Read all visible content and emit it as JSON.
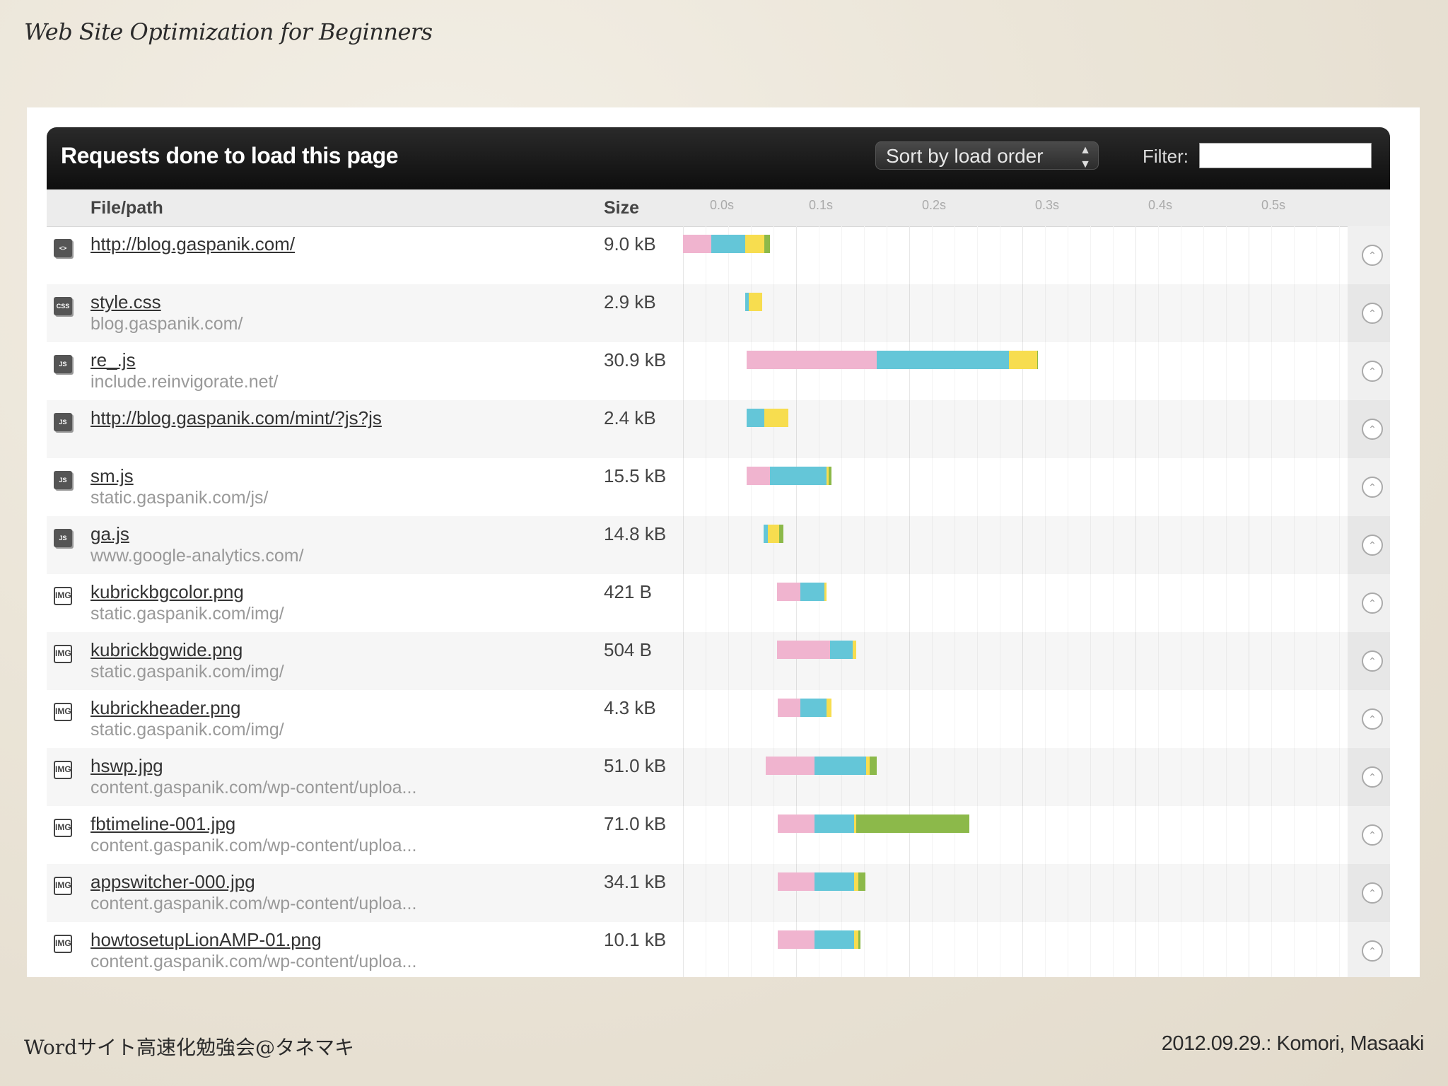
{
  "slide": {
    "title": "Web Site Optimization for Beginners",
    "footer_left": "Wordサイト高速化勉強会@タネマキ",
    "footer_right": "2012.09.29.: Komori, Masaaki"
  },
  "panel": {
    "title": "Requests done to load this page",
    "sort_label": "Sort by load order",
    "filter_label": "Filter:",
    "filter_value": ""
  },
  "columns": {
    "file": "File/path",
    "size": "Size",
    "ticks": [
      "0.0s",
      "0.1s",
      "0.2s",
      "0.3s",
      "0.4s",
      "0.5s"
    ]
  },
  "colors": {
    "dns": "#f0b4cf",
    "connect": "#64c6d8",
    "wait": "#f7dd4f",
    "receive": "#8cb94a"
  },
  "requests": [
    {
      "icon": "<>",
      "type": "html",
      "name": "http://blog.gaspanik.com/",
      "host": "",
      "size": "9.0 kB",
      "segments": [
        0.0,
        0.025,
        0.055,
        0.072,
        0.077
      ]
    },
    {
      "icon": "CSS",
      "type": "css",
      "name": "style.css",
      "host": "blog.gaspanik.com/",
      "size": "2.9 kB",
      "segments": [
        0.055,
        0.055,
        0.058,
        0.07,
        0.07
      ]
    },
    {
      "icon": "JS",
      "type": "js",
      "name": "re_.js",
      "host": "include.reinvigorate.net/",
      "size": "30.9 kB",
      "segments": [
        0.056,
        0.171,
        0.288,
        0.313,
        0.314
      ]
    },
    {
      "icon": "JS",
      "type": "js",
      "name": "http://blog.gaspanik.com/mint/?js?js",
      "host": "",
      "size": "2.4 kB",
      "segments": [
        0.056,
        0.056,
        0.072,
        0.093,
        0.093
      ]
    },
    {
      "icon": "JS",
      "type": "js",
      "name": "sm.js",
      "host": "static.gaspanik.com/js/",
      "size": "15.5 kB",
      "segments": [
        0.056,
        0.077,
        0.127,
        0.129,
        0.131
      ]
    },
    {
      "icon": "JS",
      "type": "js",
      "name": "ga.js",
      "host": "www.google-analytics.com/",
      "size": "14.8 kB",
      "segments": [
        0.071,
        0.071,
        0.075,
        0.085,
        0.089
      ]
    },
    {
      "icon": "IMG",
      "type": "img",
      "name": "kubrickbgcolor.png",
      "host": "static.gaspanik.com/img/",
      "size": "421 B",
      "segments": [
        0.083,
        0.104,
        0.125,
        0.127,
        0.127
      ]
    },
    {
      "icon": "IMG",
      "type": "img",
      "name": "kubrickbgwide.png",
      "host": "static.gaspanik.com/img/",
      "size": "504 B",
      "segments": [
        0.083,
        0.13,
        0.15,
        0.153,
        0.153
      ]
    },
    {
      "icon": "IMG",
      "type": "img",
      "name": "kubrickheader.png",
      "host": "static.gaspanik.com/img/",
      "size": "4.3 kB",
      "segments": [
        0.084,
        0.104,
        0.127,
        0.131,
        0.131
      ]
    },
    {
      "icon": "IMG",
      "type": "img",
      "name": "hswp.jpg",
      "host": "content.gaspanik.com/wp-content/uploa...",
      "size": "51.0 kB",
      "segments": [
        0.073,
        0.116,
        0.162,
        0.165,
        0.171
      ]
    },
    {
      "icon": "IMG",
      "type": "img",
      "name": "fbtimeline-001.jpg",
      "host": "content.gaspanik.com/wp-content/uploa...",
      "size": "71.0 kB",
      "segments": [
        0.084,
        0.116,
        0.151,
        0.153,
        0.253
      ]
    },
    {
      "icon": "IMG",
      "type": "img",
      "name": "appswitcher-000.jpg",
      "host": "content.gaspanik.com/wp-content/uploa...",
      "size": "34.1 kB",
      "segments": [
        0.084,
        0.116,
        0.151,
        0.155,
        0.161
      ]
    },
    {
      "icon": "IMG",
      "type": "img",
      "name": "howtosetupLionAMP-01.png",
      "host": "content.gaspanik.com/wp-content/uploa...",
      "size": "10.1 kB",
      "segments": [
        0.084,
        0.116,
        0.151,
        0.155,
        0.157
      ]
    }
  ]
}
